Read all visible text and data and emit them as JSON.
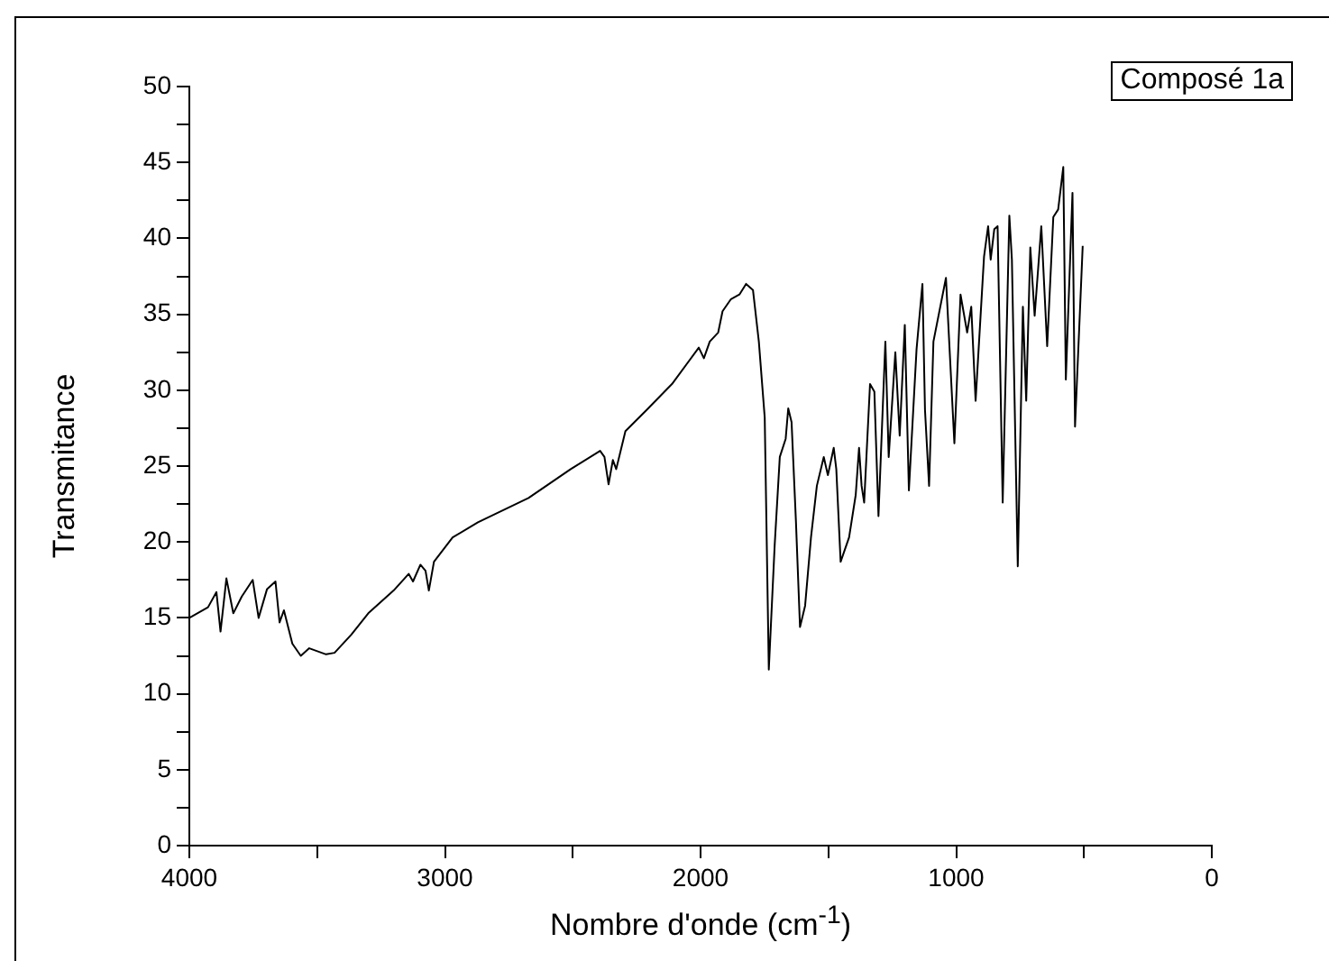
{
  "chart_data": {
    "type": "line",
    "xlabel": "Nombre d'onde (cm$^{-1}$)",
    "ylabel": "Transmitance",
    "series": [
      {
        "name": "Composé 1a",
        "color": "#000000",
        "x": [
          4000,
          3927,
          3894,
          3878,
          3855,
          3828,
          3795,
          3752,
          3729,
          3696,
          3663,
          3647,
          3630,
          3597,
          3564,
          3531,
          3465,
          3432,
          3366,
          3300,
          3201,
          3142,
          3125,
          3096,
          3076,
          3063,
          3043,
          2970,
          2871,
          2673,
          2508,
          2393,
          2376,
          2360,
          2343,
          2330,
          2294,
          2211,
          2112,
          2007,
          1987,
          1964,
          1931,
          1914,
          1881,
          1848,
          1822,
          1795,
          1772,
          1749,
          1733,
          1710,
          1690,
          1667,
          1657,
          1644,
          1627,
          1611,
          1591,
          1568,
          1545,
          1518,
          1502,
          1479,
          1469,
          1452,
          1419,
          1393,
          1380,
          1370,
          1360,
          1337,
          1320,
          1304,
          1277,
          1264,
          1238,
          1221,
          1201,
          1185,
          1155,
          1132,
          1122,
          1106,
          1089,
          1040,
          1007,
          983,
          957,
          941,
          924,
          891,
          875,
          865,
          851,
          838,
          818,
          792,
          782,
          759,
          739,
          726,
          710,
          693,
          667,
          644,
          620,
          601,
          581,
          571,
          545,
          535,
          505
        ],
        "values": [
          15.0,
          15.7,
          16.7,
          14.1,
          17.6,
          15.3,
          16.4,
          17.5,
          15.0,
          16.9,
          17.4,
          14.7,
          15.5,
          13.3,
          12.5,
          13.0,
          12.6,
          12.7,
          13.9,
          15.3,
          16.8,
          17.9,
          17.4,
          18.5,
          18.1,
          16.8,
          18.7,
          20.3,
          21.3,
          22.9,
          24.8,
          26.0,
          25.6,
          23.8,
          25.4,
          24.8,
          27.3,
          28.7,
          30.4,
          32.8,
          32.1,
          33.2,
          33.8,
          35.2,
          36.0,
          36.3,
          37.0,
          36.6,
          33.2,
          28.2,
          11.6,
          19.8,
          25.6,
          26.8,
          28.8,
          27.9,
          21.4,
          14.4,
          15.8,
          20.3,
          23.7,
          25.6,
          24.4,
          26.2,
          24.8,
          18.7,
          20.3,
          23.1,
          26.2,
          23.7,
          22.6,
          30.4,
          29.9,
          21.7,
          33.2,
          25.6,
          32.5,
          27.0,
          34.3,
          23.4,
          32.7,
          37.0,
          28.7,
          23.7,
          33.2,
          37.4,
          26.5,
          36.3,
          33.8,
          35.5,
          29.3,
          38.8,
          40.8,
          38.6,
          40.6,
          40.8,
          22.6,
          41.5,
          38.6,
          18.4,
          35.5,
          29.3,
          39.4,
          34.9,
          40.8,
          32.9,
          41.4,
          41.9,
          44.7,
          30.7,
          43.0,
          27.6,
          39.5
        ]
      }
    ],
    "xlim": [
      4000,
      0
    ],
    "xticks": [
      4000,
      {
        "value": 3500,
        "label": null
      },
      3000,
      {
        "value": 2500,
        "label": null
      },
      2000,
      {
        "value": 1500,
        "label": null
      },
      1000,
      {
        "value": 500,
        "label": null
      },
      0
    ],
    "ylim": [
      0,
      50
    ],
    "yticks": [
      0,
      {
        "value": 2.5,
        "label": null
      },
      5,
      {
        "value": 7.5,
        "label": null
      },
      10,
      {
        "value": 12.5,
        "label": null
      },
      15,
      {
        "value": 17.5,
        "label": null
      },
      20,
      {
        "value": 22.5,
        "label": null
      },
      25,
      {
        "value": 27.5,
        "label": null
      },
      30,
      {
        "value": 32.5,
        "label": null
      },
      35,
      {
        "value": 37.5,
        "label": null
      },
      40,
      {
        "value": 42.5,
        "label": null
      },
      45,
      {
        "value": 47.5,
        "label": null
      },
      50
    ],
    "grid": false,
    "legend": "top right",
    "marker": "none",
    "line_style": "solid"
  }
}
